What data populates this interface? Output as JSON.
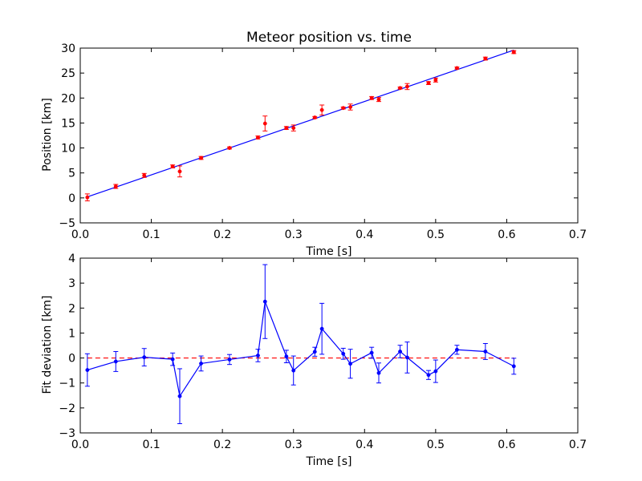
{
  "colors": {
    "fit_line": "#0000ff",
    "points": "#ff0000",
    "deviation": "#0000ff",
    "zero_line": "#ff0000"
  },
  "chart_data": [
    {
      "type": "scatter",
      "title": "Meteor position vs. time",
      "xlabel": "Time [s]",
      "ylabel": "Position [km]",
      "xlim": [
        0.0,
        0.7
      ],
      "ylim": [
        -5,
        30
      ],
      "xticks": [
        "0.0",
        "0.1",
        "0.2",
        "0.3",
        "0.4",
        "0.5",
        "0.6",
        "0.7"
      ],
      "yticks": [
        "−5",
        "0",
        "5",
        "10",
        "15",
        "20",
        "25",
        "30"
      ],
      "grid": false,
      "x": [
        0.01,
        0.05,
        0.09,
        0.13,
        0.14,
        0.17,
        0.21,
        0.25,
        0.26,
        0.29,
        0.3,
        0.33,
        0.34,
        0.37,
        0.38,
        0.41,
        0.42,
        0.45,
        0.46,
        0.49,
        0.5,
        0.53,
        0.57,
        0.61
      ],
      "y": [
        0.1,
        2.3,
        4.5,
        6.3,
        5.3,
        8.0,
        10.0,
        12.1,
        14.9,
        14.0,
        14.0,
        16.1,
        17.6,
        18.0,
        18.2,
        20.0,
        19.7,
        22.0,
        22.3,
        23.0,
        23.6,
        26.0,
        27.9,
        29.2
      ],
      "yerr": [
        0.7,
        0.4,
        0.4,
        0.3,
        1.1,
        0.3,
        0.2,
        0.3,
        1.5,
        0.3,
        0.6,
        0.2,
        1.0,
        0.2,
        0.6,
        0.3,
        0.4,
        0.2,
        0.6,
        0.3,
        0.4,
        0.2,
        0.3,
        0.3
      ],
      "fit_line": {
        "x": [
          0.01,
          0.61
        ],
        "y": [
          0.2,
          29.6
        ]
      }
    },
    {
      "type": "line",
      "title": "",
      "xlabel": "Time [s]",
      "ylabel": "Fit deviation [km]",
      "xlim": [
        0.0,
        0.7
      ],
      "ylim": [
        -3,
        4
      ],
      "xticks": [
        "0.0",
        "0.1",
        "0.2",
        "0.3",
        "0.4",
        "0.5",
        "0.6",
        "0.7"
      ],
      "yticks": [
        "−3",
        "−2",
        "−1",
        "0",
        "1",
        "2",
        "3",
        "4"
      ],
      "grid": false,
      "x": [
        0.01,
        0.05,
        0.09,
        0.13,
        0.14,
        0.17,
        0.21,
        0.25,
        0.26,
        0.29,
        0.3,
        0.33,
        0.34,
        0.37,
        0.38,
        0.41,
        0.42,
        0.45,
        0.46,
        0.49,
        0.5,
        0.53,
        0.57,
        0.61
      ],
      "y": [
        -0.48,
        -0.14,
        0.03,
        -0.05,
        -1.53,
        -0.22,
        -0.06,
        0.1,
        2.26,
        0.06,
        -0.5,
        0.25,
        1.17,
        0.17,
        -0.23,
        0.21,
        -0.6,
        0.26,
        0.02,
        -0.68,
        -0.53,
        0.33,
        0.26,
        -0.33
      ],
      "yerr": [
        0.65,
        0.4,
        0.35,
        0.25,
        1.1,
        0.3,
        0.2,
        0.25,
        1.48,
        0.25,
        0.58,
        0.18,
        1.02,
        0.22,
        0.58,
        0.22,
        0.4,
        0.25,
        0.62,
        0.18,
        0.45,
        0.18,
        0.32,
        0.32
      ],
      "zero_line": 0
    }
  ]
}
